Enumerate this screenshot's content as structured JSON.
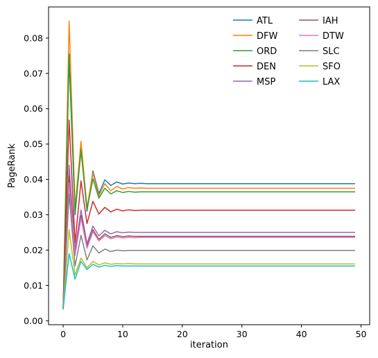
{
  "chart_data": {
    "type": "line",
    "title": "",
    "xlabel": "iteration",
    "ylabel": "PageRank",
    "xlim": [
      -2.45,
      51.45
    ],
    "ylim": [
      -0.0011,
      0.0888
    ],
    "xticks": [
      0,
      10,
      20,
      30,
      40,
      50
    ],
    "yticks": [
      0.0,
      0.01,
      0.02,
      0.03,
      0.04,
      0.05,
      0.06,
      0.07,
      0.08
    ],
    "xtick_labels": [
      "0",
      "10",
      "20",
      "30",
      "40",
      "50"
    ],
    "ytick_labels": [
      "0.00",
      "0.01",
      "0.02",
      "0.03",
      "0.04",
      "0.05",
      "0.06",
      "0.07",
      "0.08"
    ],
    "grid": false,
    "legend": {
      "placement": "top-right",
      "columns": 2
    },
    "series": [
      {
        "name": "ATL",
        "color": "#1f77b4",
        "values": [
          0.0033,
          0.074,
          0.03,
          0.049,
          0.031,
          0.0424,
          0.036,
          0.0399,
          0.0383,
          0.0393,
          0.0387,
          0.039,
          0.0388,
          0.0389,
          0.0388,
          0.0388
        ]
      },
      {
        "name": "DFW",
        "color": "#ff7f0e",
        "values": [
          0.0033,
          0.0848,
          0.032,
          0.0508,
          0.032,
          0.0418,
          0.0353,
          0.0388,
          0.0368,
          0.038,
          0.0373,
          0.0377,
          0.0375,
          0.0376,
          0.0375,
          0.0375
        ]
      },
      {
        "name": "ORD",
        "color": "#2ca02c",
        "values": [
          0.0033,
          0.0755,
          0.031,
          0.048,
          0.0315,
          0.0402,
          0.0347,
          0.0375,
          0.0359,
          0.0368,
          0.0363,
          0.0366,
          0.0364,
          0.0365,
          0.0365,
          0.0365
        ]
      },
      {
        "name": "DEN",
        "color": "#d62728",
        "values": [
          0.0033,
          0.0568,
          0.022,
          0.0396,
          0.0275,
          0.0338,
          0.0302,
          0.0321,
          0.0308,
          0.0316,
          0.0311,
          0.0314,
          0.0312,
          0.0313,
          0.0313,
          0.0313
        ]
      },
      {
        "name": "MSP",
        "color": "#9467bd",
        "values": [
          0.0033,
          0.044,
          0.02,
          0.0314,
          0.0218,
          0.0268,
          0.024,
          0.0256,
          0.0246,
          0.0252,
          0.0249,
          0.0251,
          0.025,
          0.025,
          0.025,
          0.025
        ]
      },
      {
        "name": "IAH",
        "color": "#8c564b",
        "values": [
          0.0033,
          0.041,
          0.019,
          0.0298,
          0.021,
          0.0258,
          0.023,
          0.0246,
          0.0236,
          0.0241,
          0.0238,
          0.024,
          0.0239,
          0.0239,
          0.0239,
          0.0239
        ]
      },
      {
        "name": "DTW",
        "color": "#e377c2",
        "values": [
          0.0033,
          0.039,
          0.0185,
          0.029,
          0.0205,
          0.0252,
          0.0226,
          0.0241,
          0.0232,
          0.0237,
          0.0234,
          0.0236,
          0.0235,
          0.0236,
          0.0236,
          0.0236
        ]
      },
      {
        "name": "SLC",
        "color": "#7f7f7f",
        "values": [
          0.0033,
          0.036,
          0.0155,
          0.0242,
          0.0172,
          0.0212,
          0.0192,
          0.0203,
          0.0196,
          0.02,
          0.0198,
          0.0199,
          0.0199,
          0.0199,
          0.0199,
          0.0199
        ]
      },
      {
        "name": "SFO",
        "color": "#bcbd22",
        "values": [
          0.0033,
          0.0258,
          0.013,
          0.0178,
          0.015,
          0.0168,
          0.0158,
          0.0164,
          0.016,
          0.0162,
          0.0161,
          0.0162,
          0.0161,
          0.0161,
          0.0161,
          0.0161
        ]
      },
      {
        "name": "LAX",
        "color": "#17becf",
        "values": [
          0.0033,
          0.019,
          0.0118,
          0.0168,
          0.0145,
          0.016,
          0.0152,
          0.0157,
          0.0154,
          0.0156,
          0.0155,
          0.0155,
          0.0155,
          0.0155,
          0.0155,
          0.0155
        ]
      }
    ],
    "x_last": 49
  }
}
